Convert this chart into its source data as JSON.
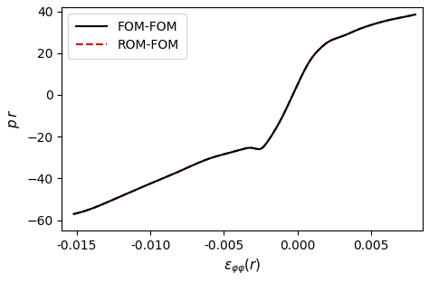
{
  "title": "",
  "xlabel": "$\\epsilon_{\\varphi\\varphi}(r)$",
  "ylabel": "$p\\,r$",
  "xlim": [
    -0.016,
    0.0085
  ],
  "ylim": [
    -65,
    42
  ],
  "yticks": [
    -60,
    -40,
    -20,
    0,
    20,
    40
  ],
  "xticks": [
    -0.015,
    -0.01,
    -0.005,
    0.0,
    0.005
  ],
  "legend_entries": [
    "FOM-FOM",
    "ROM-FOM"
  ],
  "fom_color": "#000000",
  "rom_color": "#cc0000",
  "background_color": "#ffffff",
  "fom_linewidth": 1.5,
  "rom_linewidth": 1.5,
  "curve_x": [
    -0.0152,
    -0.014,
    -0.012,
    -0.01,
    -0.008,
    -0.006,
    -0.004,
    -0.003,
    -0.0025,
    -0.002,
    -0.001,
    0.0,
    0.001,
    0.0015,
    0.002,
    0.003,
    0.004,
    0.005,
    0.006,
    0.007,
    0.008
  ],
  "curve_y": [
    -57.0,
    -54.5,
    -48.5,
    -42.5,
    -36.5,
    -30.5,
    -26.5,
    -25.5,
    -25.8,
    -22.0,
    -10.0,
    5.0,
    18.0,
    22.0,
    25.0,
    28.0,
    31.0,
    33.5,
    35.5,
    37.0,
    38.5
  ]
}
